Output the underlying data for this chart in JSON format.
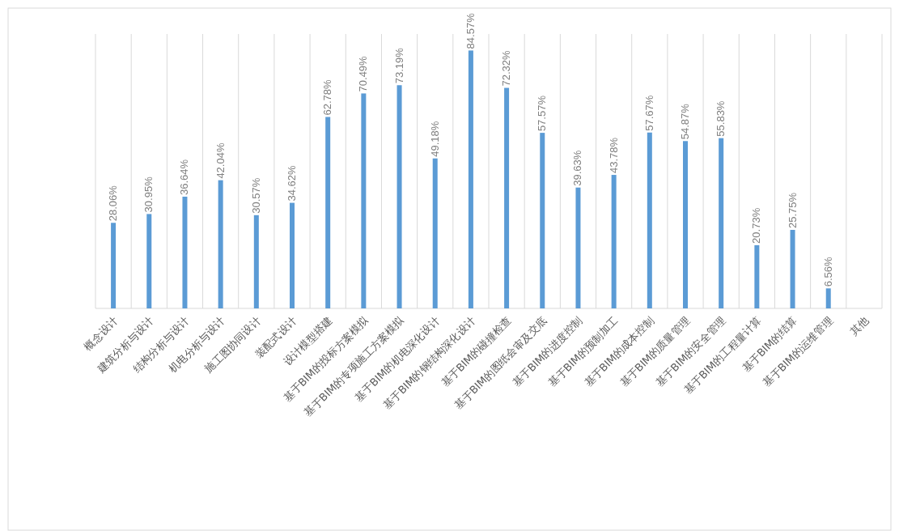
{
  "chart_data": {
    "type": "bar",
    "categories": [
      "概念设计",
      "建筑分析与设计",
      "结构分析与设计",
      "机电分析与设计",
      "施工图协同设计",
      "装配式设计",
      "设计模型搭建",
      "基于BIM的投标方案模拟",
      "基于BIM的专项施工方案模拟",
      "基于BIM的机电深化设计",
      "基于BIM的钢结构深化设计",
      "基于BIM的碰撞检查",
      "基于BIM的图纸会审及交底",
      "基于BIM的进度控制",
      "基于BIM的预制加工",
      "基于BIM的成本控制",
      "基于BIM的质量管理",
      "基于BIM的安全管理",
      "基于BIM的工程量计算",
      "基于BIM的结算",
      "基于BIM的运维管理",
      "其他"
    ],
    "values": [
      28.06,
      30.95,
      36.64,
      42.04,
      30.57,
      34.62,
      62.78,
      70.49,
      73.19,
      49.18,
      84.57,
      72.32,
      57.57,
      39.63,
      43.78,
      57.67,
      54.87,
      55.83,
      20.73,
      25.75,
      6.56,
      null
    ],
    "value_labels": [
      "28.06%",
      "30.95%",
      "36.64%",
      "42.04%",
      "30.57%",
      "34.62%",
      "62.78%",
      "70.49%",
      "73.19%",
      "49.18%",
      "84.57%",
      "72.32%",
      "57.57%",
      "39.63%",
      "43.78%",
      "57.67%",
      "54.87%",
      "55.83%",
      "20.73%",
      "25.75%",
      "6.56%",
      null
    ],
    "color": "#5b9bd5",
    "grid": "x"
  }
}
